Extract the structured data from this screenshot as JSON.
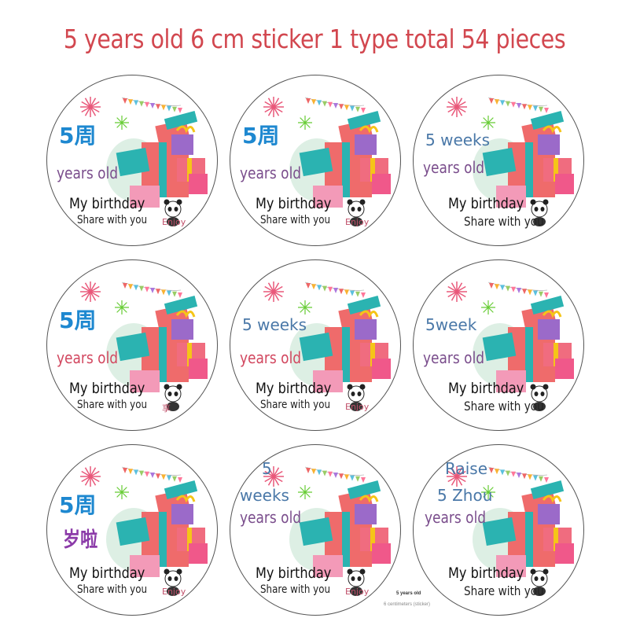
{
  "title": "5 years old 6 cm sticker 1 type total 54 pieces",
  "colors": {
    "title": "#d2474f",
    "purple_text": "#7a4d8c",
    "pink_text": "#c0506a",
    "blue_text": "#4a78a8"
  },
  "stickers": [
    {
      "top": "5周",
      "age": "years old",
      "birthday": "My birthday",
      "share": "Share with you",
      "extra": "Enjoy"
    },
    {
      "top": "5周",
      "age": "years old",
      "birthday": "My birthday",
      "share": "Share with you",
      "extra": "Enjoy"
    },
    {
      "top": "5 weeks",
      "age": "years old",
      "birthday": "My birthday",
      "share": "Share with you",
      "extra": ""
    },
    {
      "top": "5周",
      "age": "years old",
      "birthday": "My birthday",
      "share": "Share with you",
      "extra": "享"
    },
    {
      "top": "5 weeks",
      "age": "years old",
      "birthday": "My birthday",
      "share": "Share with you",
      "extra": "Enjoy"
    },
    {
      "top": "5week",
      "age": "years old",
      "birthday": "My birthday",
      "share": "Share with you",
      "extra": ""
    },
    {
      "top": "5周",
      "age": "岁啦",
      "birthday": "My birthday",
      "share": "Share with you",
      "extra": "Enjoy"
    },
    {
      "top": "5",
      "top2": "weeks",
      "age": "years old",
      "birthday": "My birthday",
      "share": "Share with you",
      "extra": "Enjoy"
    },
    {
      "top": "Raise",
      "top2": "5 Zhou",
      "age": "years old",
      "birthday": "My birthday",
      "share": "Share with you",
      "extra": ""
    }
  ],
  "footnote": {
    "line1": "5 years old",
    "line2": "6 centimeters (sticker)"
  }
}
